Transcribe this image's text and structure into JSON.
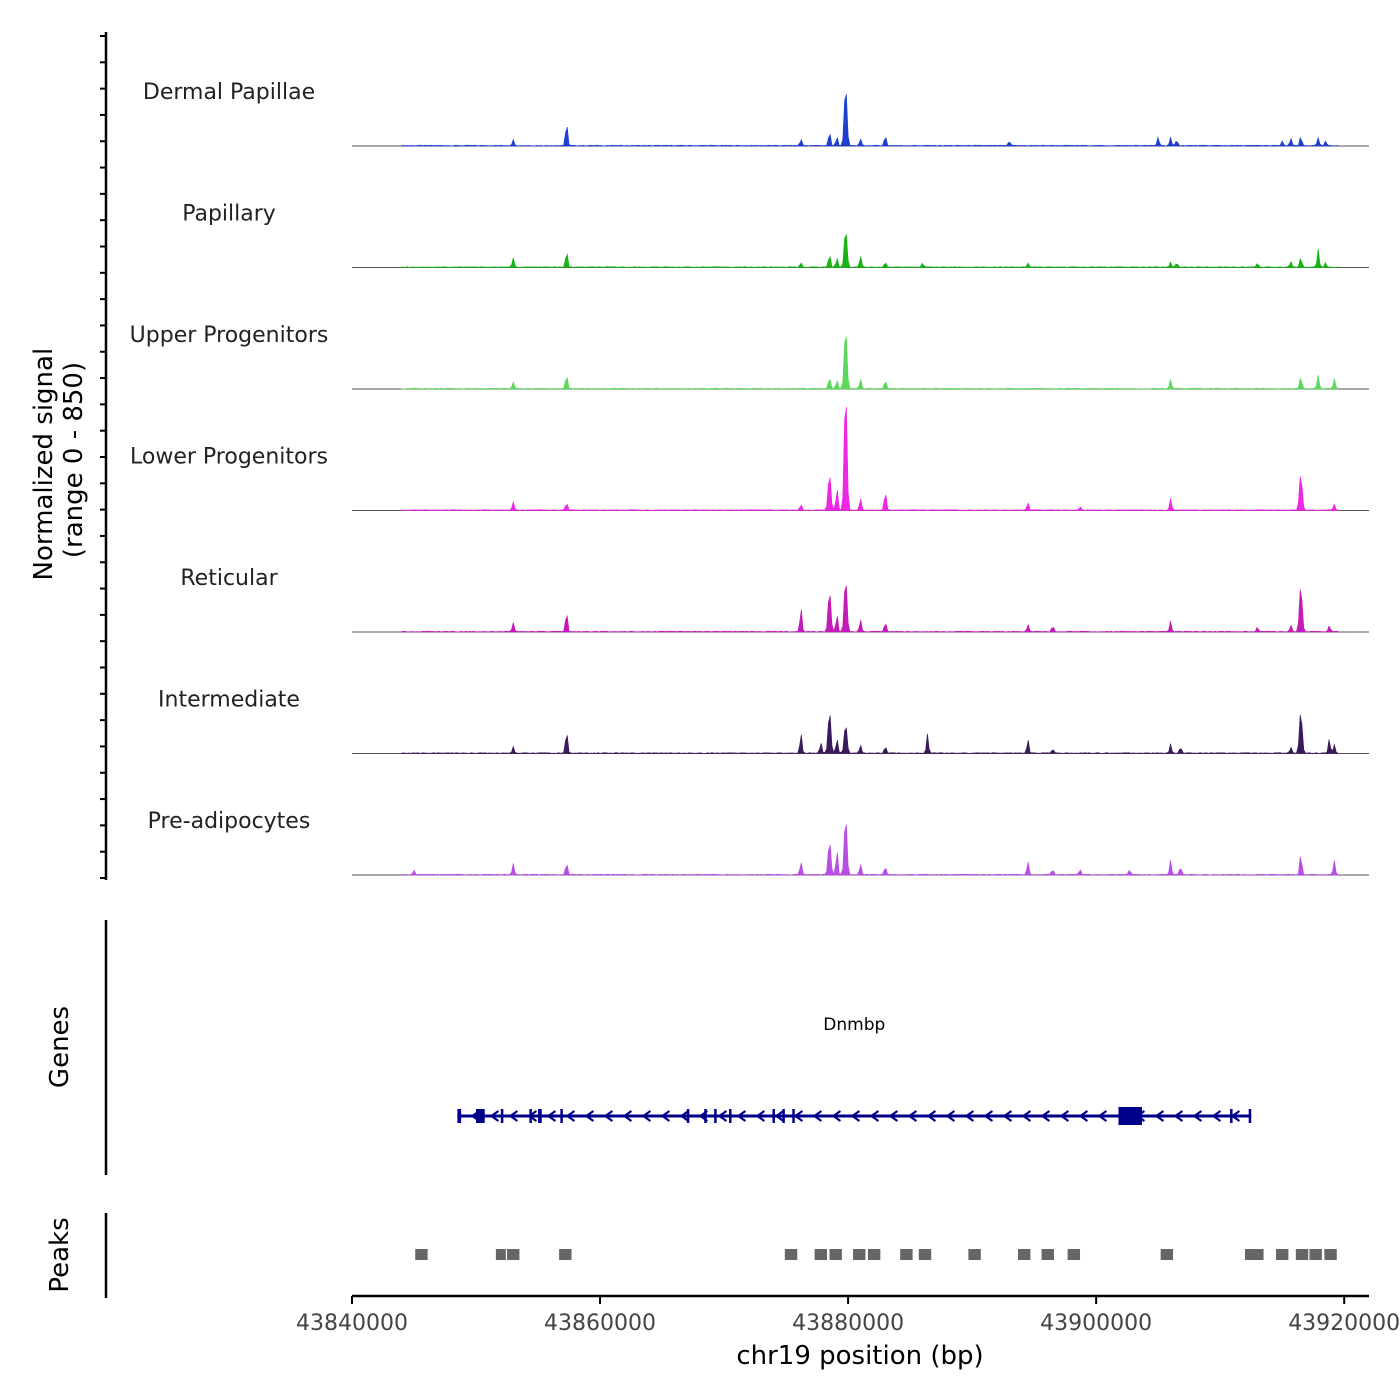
{
  "chart_data": {
    "type": "area",
    "title": "",
    "ylabel_line1": "Normalized signal",
    "ylabel_line2": "(range 0 - 850)",
    "y_range": [
      0,
      850
    ],
    "xlabel": "chr19 position (bp)",
    "xlim": [
      43840000,
      43922000
    ],
    "x_ticks": [
      {
        "value": 43840000,
        "label": "43840000"
      },
      {
        "value": 43860000,
        "label": "43860000"
      },
      {
        "value": 43880000,
        "label": "43880000"
      },
      {
        "value": 43900000,
        "label": "43900000"
      },
      {
        "value": 43920000,
        "label": "43920000"
      }
    ],
    "signal_start": 43844000,
    "signal_end": 43919500,
    "series": [
      {
        "name": "Dermal Papillae",
        "color": "#1f3fd1",
        "peaks": [
          [
            43853000,
            80
          ],
          [
            43857300,
            340
          ],
          [
            43876200,
            90
          ],
          [
            43878500,
            200
          ],
          [
            43879100,
            120
          ],
          [
            43879800,
            850
          ],
          [
            43881000,
            90
          ],
          [
            43883000,
            140
          ],
          [
            43893000,
            60
          ],
          [
            43905000,
            120
          ],
          [
            43906000,
            110
          ],
          [
            43906500,
            80
          ],
          [
            43915000,
            60
          ],
          [
            43915700,
            100
          ],
          [
            43916500,
            130
          ],
          [
            43917900,
            110
          ],
          [
            43918500,
            60
          ]
        ]
      },
      {
        "name": "Papillary",
        "color": "#18b314",
        "peaks": [
          [
            43853000,
            130
          ],
          [
            43857300,
            230
          ],
          [
            43876200,
            60
          ],
          [
            43878500,
            190
          ],
          [
            43879100,
            130
          ],
          [
            43879800,
            540
          ],
          [
            43881000,
            160
          ],
          [
            43883000,
            70
          ],
          [
            43886000,
            60
          ],
          [
            43894500,
            60
          ],
          [
            43906000,
            70
          ],
          [
            43906500,
            60
          ],
          [
            43913000,
            50
          ],
          [
            43915700,
            80
          ],
          [
            43916500,
            140
          ],
          [
            43917900,
            260
          ],
          [
            43918500,
            60
          ]
        ]
      },
      {
        "name": "Upper Progenitors",
        "color": "#5cd95c",
        "peaks": [
          [
            43853000,
            90
          ],
          [
            43857300,
            200
          ],
          [
            43878500,
            160
          ],
          [
            43879100,
            120
          ],
          [
            43879800,
            870
          ],
          [
            43881000,
            130
          ],
          [
            43883000,
            120
          ],
          [
            43906000,
            130
          ],
          [
            43916500,
            170
          ],
          [
            43917900,
            190
          ],
          [
            43919200,
            140
          ]
        ]
      },
      {
        "name": "Lower Progenitors",
        "color": "#f026e6",
        "peaks": [
          [
            43853000,
            110
          ],
          [
            43857300,
            100
          ],
          [
            43876200,
            80
          ],
          [
            43878500,
            520
          ],
          [
            43879100,
            310
          ],
          [
            43879800,
            1720
          ],
          [
            43881000,
            170
          ],
          [
            43883000,
            280
          ],
          [
            43894500,
            100
          ],
          [
            43898700,
            50
          ],
          [
            43906000,
            160
          ],
          [
            43916500,
            520
          ],
          [
            43919200,
            80
          ]
        ]
      },
      {
        "name": "Reticular",
        "color": "#c41aba",
        "peaks": [
          [
            43853000,
            120
          ],
          [
            43857300,
            290
          ],
          [
            43876200,
            340
          ],
          [
            43878500,
            580
          ],
          [
            43879100,
            240
          ],
          [
            43879800,
            760
          ],
          [
            43881000,
            170
          ],
          [
            43883000,
            130
          ],
          [
            43894500,
            100
          ],
          [
            43896500,
            80
          ],
          [
            43906000,
            150
          ],
          [
            43913000,
            60
          ],
          [
            43915700,
            90
          ],
          [
            43916500,
            660
          ],
          [
            43918800,
            80
          ]
        ]
      },
      {
        "name": "Intermediate",
        "color": "#3b1a5c",
        "peaks": [
          [
            43853000,
            90
          ],
          [
            43857300,
            330
          ],
          [
            43876200,
            280
          ],
          [
            43877800,
            150
          ],
          [
            43878500,
            600
          ],
          [
            43879100,
            200
          ],
          [
            43879800,
            420
          ],
          [
            43881000,
            110
          ],
          [
            43883000,
            90
          ],
          [
            43886400,
            270
          ],
          [
            43894500,
            190
          ],
          [
            43896500,
            60
          ],
          [
            43906000,
            130
          ],
          [
            43906800,
            90
          ],
          [
            43915700,
            80
          ],
          [
            43916500,
            600
          ],
          [
            43918800,
            200
          ],
          [
            43919200,
            120
          ]
        ]
      },
      {
        "name": "Pre-adipocytes",
        "color": "#b84ee6",
        "peaks": [
          [
            43845000,
            60
          ],
          [
            43853000,
            160
          ],
          [
            43857300,
            170
          ],
          [
            43876200,
            180
          ],
          [
            43878500,
            480
          ],
          [
            43879100,
            340
          ],
          [
            43879800,
            830
          ],
          [
            43881000,
            150
          ],
          [
            43883000,
            110
          ],
          [
            43894500,
            190
          ],
          [
            43896500,
            70
          ],
          [
            43898700,
            70
          ],
          [
            43902700,
            70
          ],
          [
            43906000,
            200
          ],
          [
            43906800,
            110
          ],
          [
            43916500,
            300
          ],
          [
            43919200,
            200
          ]
        ]
      }
    ],
    "gene": {
      "name": "Dnmbp",
      "start": 43848500,
      "end": 43912500,
      "strand": "-",
      "color": "#00008b",
      "exons": [
        [
          43848500,
          43848800
        ],
        [
          43850000,
          43850700
        ],
        [
          43852000,
          43852200
        ],
        [
          43854300,
          43854500
        ],
        [
          43855000,
          43855300
        ],
        [
          43856800,
          43857000
        ],
        [
          43867000,
          43867200
        ],
        [
          43868400,
          43868600
        ],
        [
          43869200,
          43869400
        ],
        [
          43870400,
          43870600
        ],
        [
          43873900,
          43874100
        ],
        [
          43874700,
          43874900
        ],
        [
          43875500,
          43875700
        ],
        [
          43901800,
          43903700
        ],
        [
          43910800,
          43911000
        ],
        [
          43912300,
          43912500
        ]
      ]
    },
    "peaks": {
      "color": "#666666",
      "regions": [
        [
          43845100,
          43846100
        ],
        [
          43851600,
          43852400
        ],
        [
          43852500,
          43853500
        ],
        [
          43856700,
          43857700
        ],
        [
          43874900,
          43875900
        ],
        [
          43877300,
          43878300
        ],
        [
          43878500,
          43879500
        ],
        [
          43880400,
          43881400
        ],
        [
          43881600,
          43882600
        ],
        [
          43884200,
          43885200
        ],
        [
          43885700,
          43886700
        ],
        [
          43889700,
          43890700
        ],
        [
          43893700,
          43894700
        ],
        [
          43895600,
          43896600
        ],
        [
          43897700,
          43898700
        ],
        [
          43905200,
          43906200
        ],
        [
          43912000,
          43913000
        ],
        [
          43912500,
          43913500
        ],
        [
          43914500,
          43915500
        ],
        [
          43916100,
          43917100
        ],
        [
          43917200,
          43918200
        ],
        [
          43918400,
          43919400
        ]
      ]
    }
  },
  "panels": {
    "genes_label": "Genes",
    "peaks_label": "Peaks"
  }
}
